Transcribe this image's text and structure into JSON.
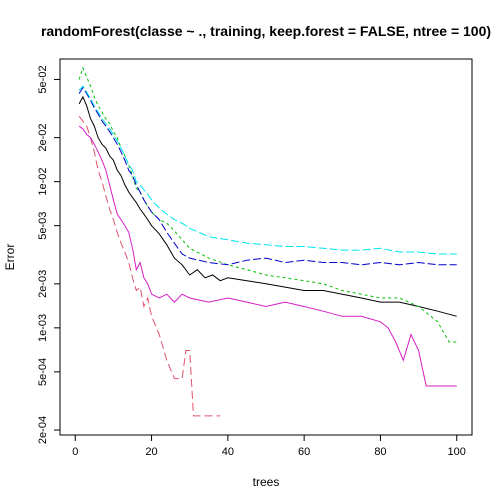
{
  "chart_data": {
    "type": "line",
    "title": "randomForest(classe ~ ., training, keep.forest = FALSE, ntree = 100)",
    "xlabel": "trees",
    "ylabel": "Error",
    "xlim": [
      0,
      100
    ],
    "ylim": [
      0.0002,
      0.07
    ],
    "y_log_scale": true,
    "grid": false,
    "legend": "none",
    "x_ticks": [
      0,
      20,
      40,
      60,
      80,
      100
    ],
    "x_tick_labels": [
      "0",
      "20",
      "40",
      "60",
      "80",
      "100"
    ],
    "y_ticks": [
      0.0002,
      0.0005,
      0.001,
      0.002,
      0.005,
      0.01,
      0.02,
      0.05
    ],
    "y_tick_labels": [
      "2e-04",
      "5e-04",
      "1e-03",
      "2e-03",
      "5e-03",
      "1e-02",
      "2e-02",
      "5e-02"
    ],
    "series": [
      {
        "color": "#000000",
        "dash": "solid",
        "x": [
          1,
          2,
          3,
          4,
          5,
          6,
          7,
          8,
          9,
          10,
          11,
          12,
          13,
          14,
          15,
          16,
          17,
          18,
          19,
          20,
          22,
          24,
          26,
          28,
          30,
          32,
          34,
          36,
          38,
          40,
          45,
          50,
          55,
          60,
          65,
          70,
          75,
          80,
          85,
          90,
          95,
          100
        ],
        "y": [
          0.034,
          0.038,
          0.033,
          0.027,
          0.024,
          0.02,
          0.018,
          0.017,
          0.015,
          0.014,
          0.012,
          0.011,
          0.0095,
          0.0085,
          0.0078,
          0.0072,
          0.0065,
          0.006,
          0.0055,
          0.005,
          0.0044,
          0.0037,
          0.003,
          0.0027,
          0.0023,
          0.0025,
          0.0022,
          0.0023,
          0.0021,
          0.0022,
          0.0021,
          0.002,
          0.0019,
          0.0018,
          0.0018,
          0.0017,
          0.0016,
          0.0015,
          0.0015,
          0.0014,
          0.0013,
          0.0012
        ]
      },
      {
        "color": "#df536b",
        "dash": "8,4",
        "x": [
          1,
          2,
          3,
          4,
          5,
          6,
          7,
          8,
          9,
          10,
          11,
          12,
          13,
          14,
          15,
          16,
          17,
          18,
          19,
          20,
          22,
          24,
          26,
          28,
          29,
          30,
          31,
          32,
          33,
          34,
          35,
          36,
          37,
          38
        ],
        "y": [
          0.028,
          0.026,
          0.024,
          0.02,
          0.016,
          0.012,
          0.01,
          0.008,
          0.0065,
          0.0055,
          0.0045,
          0.0038,
          0.0033,
          0.0028,
          0.0022,
          0.0018,
          0.0019,
          0.0014,
          0.0016,
          0.0012,
          0.0009,
          0.0006,
          0.00045,
          0.00045,
          0.0007,
          0.0007,
          0.00025,
          0.00025,
          0.00025,
          0.00025,
          0.00025,
          0.00025,
          0.00025,
          0.00025
        ]
      },
      {
        "color": "#d51ec5",
        "dash": "solid",
        "x": [
          1,
          2,
          3,
          4,
          5,
          6,
          7,
          8,
          9,
          10,
          11,
          12,
          13,
          14,
          15,
          16,
          17,
          18,
          19,
          20,
          22,
          24,
          26,
          28,
          30,
          35,
          40,
          45,
          50,
          55,
          60,
          65,
          70,
          75,
          80,
          82,
          84,
          86,
          88,
          90,
          92,
          94,
          96,
          98,
          100
        ],
        "y": [
          0.024,
          0.023,
          0.021,
          0.02,
          0.018,
          0.016,
          0.014,
          0.012,
          0.0095,
          0.0075,
          0.006,
          0.0055,
          0.005,
          0.0045,
          0.0035,
          0.0025,
          0.0028,
          0.0022,
          0.002,
          0.0017,
          0.0016,
          0.0017,
          0.0015,
          0.0017,
          0.0016,
          0.0015,
          0.0016,
          0.0015,
          0.0014,
          0.0015,
          0.0014,
          0.0013,
          0.0012,
          0.0012,
          0.0011,
          0.001,
          0.0008,
          0.0006,
          0.0009,
          0.0007,
          0.0004,
          0.0004,
          0.0004,
          0.0004,
          0.0004
        ]
      },
      {
        "color": "#00c000",
        "dash": "3,3",
        "x": [
          1,
          2,
          3,
          4,
          5,
          6,
          7,
          8,
          9,
          10,
          11,
          12,
          13,
          14,
          15,
          16,
          17,
          18,
          19,
          20,
          22,
          24,
          26,
          28,
          30,
          35,
          40,
          45,
          50,
          55,
          60,
          65,
          70,
          75,
          80,
          85,
          90,
          95,
          98,
          100
        ],
        "y": [
          0.05,
          0.06,
          0.052,
          0.045,
          0.038,
          0.033,
          0.03,
          0.027,
          0.025,
          0.022,
          0.02,
          0.017,
          0.015,
          0.013,
          0.011,
          0.009,
          0.0085,
          0.0075,
          0.0068,
          0.0062,
          0.0055,
          0.0052,
          0.0046,
          0.004,
          0.0035,
          0.003,
          0.0027,
          0.0025,
          0.0023,
          0.0022,
          0.0021,
          0.002,
          0.0018,
          0.0017,
          0.0016,
          0.0016,
          0.0014,
          0.0011,
          0.0008,
          0.0008
        ]
      },
      {
        "color": "#0000cd",
        "dash": "8,3",
        "x": [
          1,
          2,
          3,
          4,
          5,
          6,
          7,
          8,
          9,
          10,
          11,
          12,
          13,
          14,
          15,
          16,
          17,
          18,
          19,
          20,
          22,
          24,
          26,
          28,
          30,
          35,
          40,
          45,
          50,
          55,
          60,
          65,
          70,
          75,
          80,
          85,
          90,
          95,
          100
        ],
        "y": [
          0.04,
          0.044,
          0.04,
          0.036,
          0.032,
          0.029,
          0.026,
          0.024,
          0.022,
          0.02,
          0.018,
          0.016,
          0.014,
          0.012,
          0.011,
          0.0095,
          0.0085,
          0.0075,
          0.0068,
          0.0062,
          0.0055,
          0.0045,
          0.0038,
          0.0032,
          0.003,
          0.0028,
          0.0027,
          0.0029,
          0.003,
          0.0028,
          0.0029,
          0.0028,
          0.0028,
          0.0027,
          0.0028,
          0.0027,
          0.0028,
          0.0027,
          0.0027
        ]
      },
      {
        "color": "#00e5ee",
        "dash": "8,3",
        "x": [
          1,
          2,
          3,
          4,
          5,
          6,
          7,
          8,
          9,
          10,
          11,
          12,
          13,
          14,
          15,
          16,
          17,
          18,
          19,
          20,
          22,
          24,
          26,
          28,
          30,
          35,
          40,
          45,
          50,
          55,
          60,
          65,
          70,
          75,
          80,
          85,
          90,
          95,
          100
        ],
        "y": [
          0.042,
          0.045,
          0.041,
          0.037,
          0.033,
          0.03,
          0.027,
          0.025,
          0.023,
          0.021,
          0.019,
          0.017,
          0.015,
          0.013,
          0.012,
          0.01,
          0.0095,
          0.0088,
          0.0082,
          0.0075,
          0.0066,
          0.006,
          0.0055,
          0.0052,
          0.0048,
          0.0042,
          0.004,
          0.0038,
          0.0037,
          0.0036,
          0.0036,
          0.0035,
          0.0034,
          0.0034,
          0.0035,
          0.0033,
          0.0033,
          0.0032,
          0.0032
        ]
      }
    ]
  }
}
